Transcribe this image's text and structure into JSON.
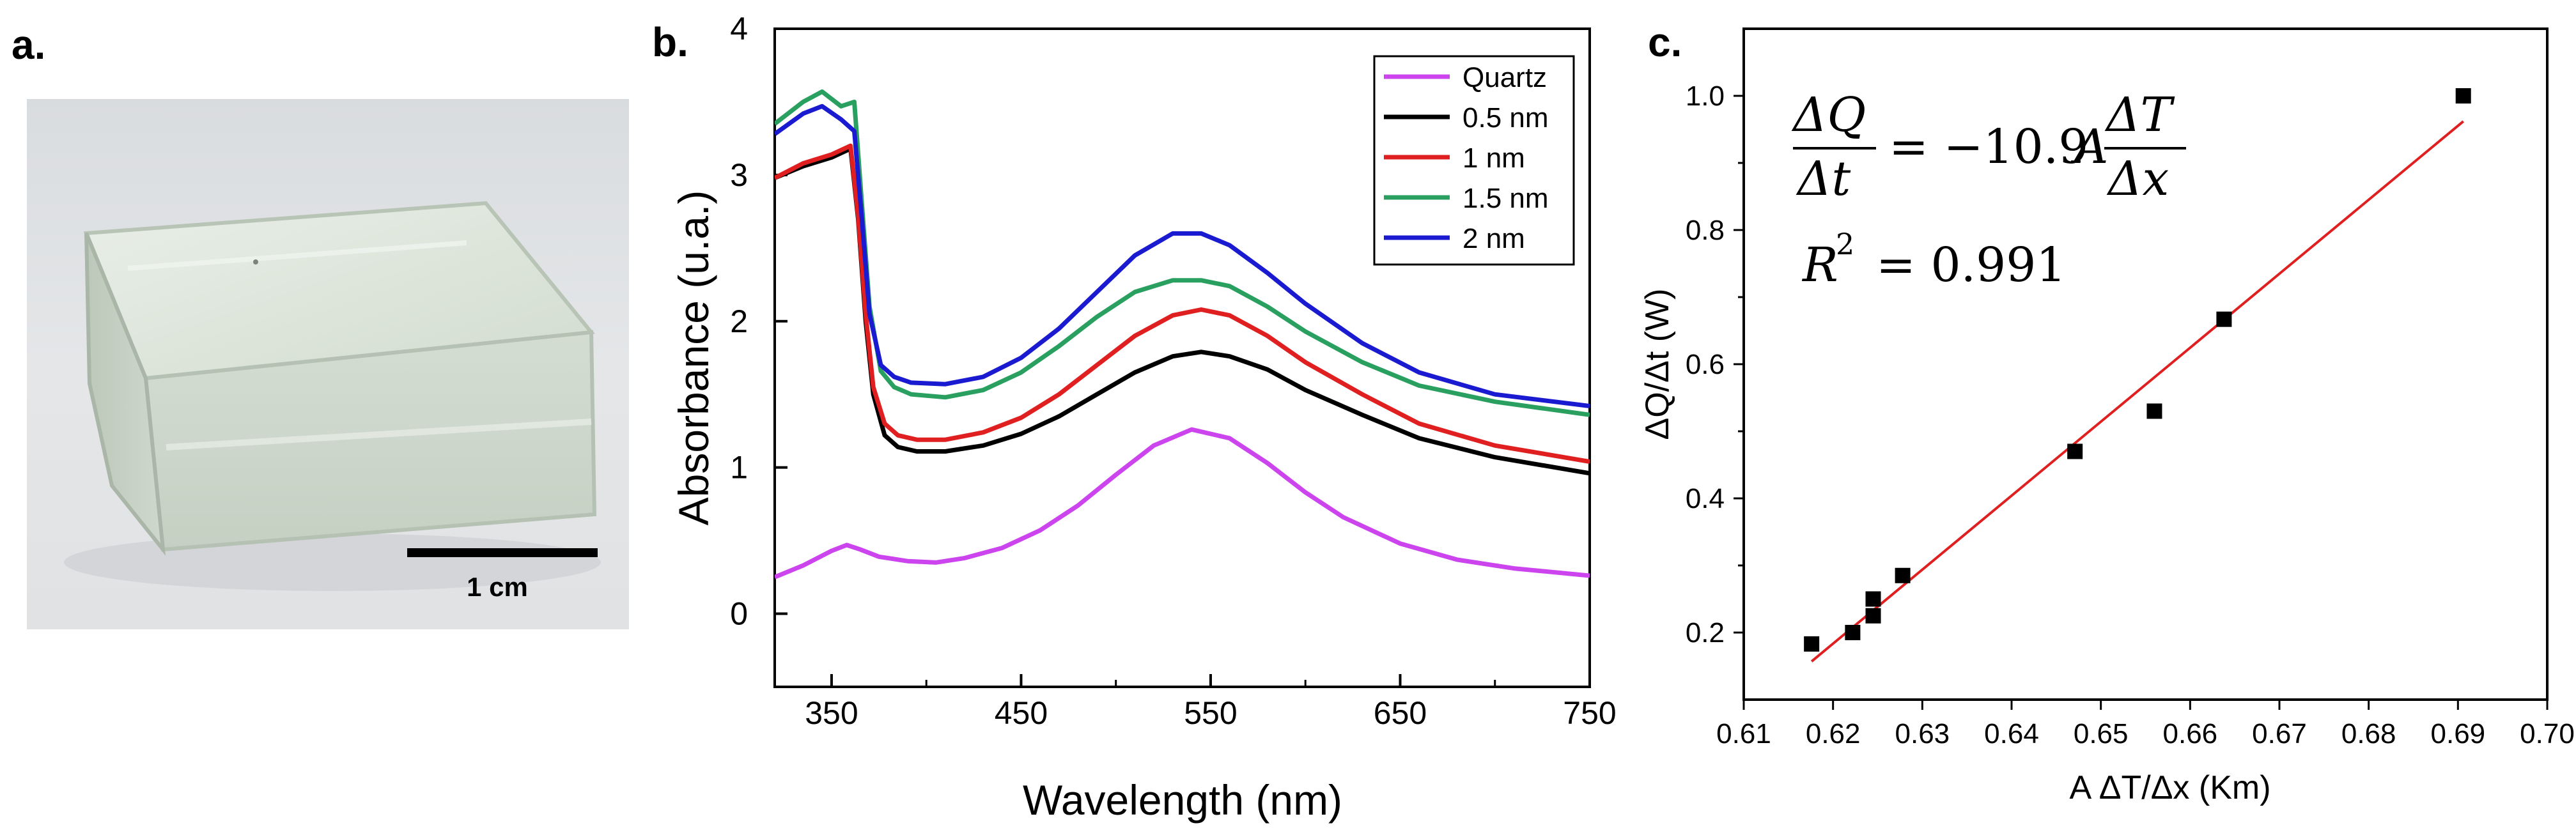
{
  "panels": {
    "a": {
      "label": "a.",
      "scale_bar_text": "1 cm"
    },
    "b": {
      "label": "b."
    },
    "c": {
      "label": "c."
    }
  },
  "chart_data": [
    {
      "type": "line",
      "panel": "b",
      "xlabel": "Wavelength (nm)",
      "ylabel": "Absorbance (u.a.)",
      "xlim": [
        320,
        750
      ],
      "ylim": [
        -0.5,
        4
      ],
      "xticks": [
        350,
        450,
        550,
        650,
        750
      ],
      "yticks": [
        0,
        1,
        2,
        3,
        4
      ],
      "legend_position": "top-right",
      "series": [
        {
          "name": "Quartz",
          "color": "#cc44ee",
          "x": [
            320,
            335,
            350,
            358,
            365,
            375,
            390,
            405,
            420,
            440,
            460,
            480,
            500,
            520,
            540,
            560,
            580,
            600,
            620,
            650,
            680,
            710,
            750
          ],
          "y": [
            0.25,
            0.33,
            0.43,
            0.47,
            0.44,
            0.39,
            0.36,
            0.35,
            0.38,
            0.45,
            0.57,
            0.74,
            0.95,
            1.15,
            1.26,
            1.2,
            1.03,
            0.83,
            0.66,
            0.48,
            0.37,
            0.31,
            0.26
          ]
        },
        {
          "name": "0.5 nm",
          "color": "#000000",
          "x": [
            320,
            335,
            350,
            360,
            364,
            368,
            372,
            378,
            385,
            395,
            410,
            430,
            450,
            470,
            490,
            510,
            530,
            545,
            560,
            580,
            600,
            630,
            660,
            700,
            750
          ],
          "y": [
            2.98,
            3.06,
            3.12,
            3.18,
            2.7,
            2.0,
            1.5,
            1.22,
            1.14,
            1.11,
            1.11,
            1.15,
            1.23,
            1.35,
            1.5,
            1.65,
            1.76,
            1.79,
            1.76,
            1.67,
            1.53,
            1.36,
            1.2,
            1.07,
            0.96
          ]
        },
        {
          "name": "1 nm",
          "color": "#e02020",
          "x": [
            320,
            335,
            350,
            360,
            364,
            368,
            372,
            378,
            385,
            395,
            410,
            430,
            450,
            470,
            490,
            510,
            530,
            545,
            560,
            580,
            600,
            630,
            660,
            700,
            750
          ],
          "y": [
            2.98,
            3.08,
            3.14,
            3.2,
            2.72,
            2.05,
            1.55,
            1.3,
            1.22,
            1.19,
            1.19,
            1.24,
            1.34,
            1.5,
            1.7,
            1.9,
            2.04,
            2.08,
            2.04,
            1.9,
            1.72,
            1.5,
            1.3,
            1.15,
            1.04
          ]
        },
        {
          "name": "1.5 nm",
          "color": "#2aa060",
          "x": [
            320,
            335,
            345,
            355,
            362,
            366,
            370,
            376,
            383,
            392,
            410,
            430,
            450,
            470,
            490,
            510,
            530,
            545,
            560,
            580,
            600,
            630,
            660,
            700,
            750
          ],
          "y": [
            3.35,
            3.5,
            3.57,
            3.47,
            3.5,
            2.8,
            2.1,
            1.66,
            1.55,
            1.5,
            1.48,
            1.53,
            1.65,
            1.83,
            2.03,
            2.2,
            2.28,
            2.28,
            2.24,
            2.1,
            1.93,
            1.72,
            1.56,
            1.45,
            1.36
          ]
        },
        {
          "name": "2 nm",
          "color": "#1a1ad0",
          "x": [
            320,
            335,
            345,
            355,
            362,
            366,
            370,
            376,
            383,
            392,
            410,
            430,
            450,
            470,
            490,
            510,
            530,
            545,
            560,
            580,
            600,
            630,
            660,
            700,
            750
          ],
          "y": [
            3.28,
            3.42,
            3.47,
            3.38,
            3.3,
            2.7,
            2.05,
            1.7,
            1.62,
            1.58,
            1.57,
            1.62,
            1.75,
            1.95,
            2.2,
            2.45,
            2.6,
            2.6,
            2.52,
            2.33,
            2.12,
            1.85,
            1.65,
            1.5,
            1.42
          ]
        }
      ]
    },
    {
      "type": "scatter",
      "panel": "c",
      "xlabel": "A ΔT/Δx (Km)",
      "ylabel": "ΔQ/Δt (W)",
      "xlim": [
        0.61,
        0.7
      ],
      "ylim": [
        0.1,
        1.1
      ],
      "xticks": [
        "0.61",
        "0.62",
        "0.63",
        "0.64",
        "0.65",
        "0.66",
        "0.67",
        "0.68",
        "0.69",
        "0.70"
      ],
      "yticks": [
        "0.2",
        "0.4",
        "0.6",
        "0.8",
        "1.0"
      ],
      "points": {
        "x": [
          0.6176,
          0.6222,
          0.6245,
          0.6245,
          0.6278,
          0.6471,
          0.656,
          0.6638,
          0.6906
        ],
        "y": [
          0.183,
          0.2,
          0.225,
          0.25,
          0.285,
          0.47,
          0.53,
          0.667,
          1.0
        ]
      },
      "fit_line": {
        "color": "#e02020",
        "x": [
          0.6176,
          0.6906
        ],
        "y": [
          0.157,
          0.962
        ]
      },
      "annotation": {
        "dq": "ΔQ",
        "dt": "Δt",
        "equals_coeff": "= −10.9",
        "area_symbol": "A",
        "dT": "ΔT",
        "dx": "Δx",
        "r2_label": "R",
        "r2_power": "2",
        "r2_value": "= 0.991"
      }
    }
  ]
}
